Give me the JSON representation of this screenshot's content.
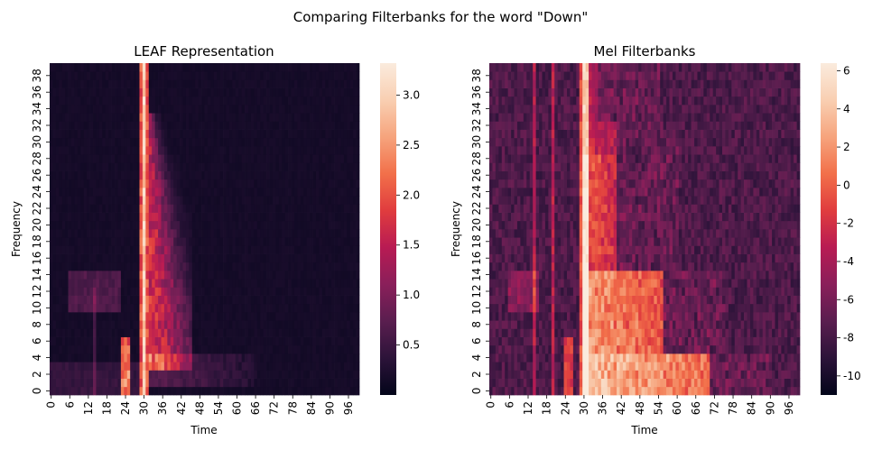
{
  "figure": {
    "suptitle": "Comparing Filterbanks for the word \"Down\""
  },
  "colormap": {
    "name": "rocket",
    "stops": [
      "#03051a",
      "#2c1339",
      "#5a1e4f",
      "#8a1f5a",
      "#b81b53",
      "#e03c3e",
      "#f2704a",
      "#f6a47d",
      "#f9cfb2",
      "#faebdd"
    ]
  },
  "chart_data": [
    {
      "type": "heatmap",
      "title": "LEAF Representation",
      "xlabel": "Time",
      "ylabel": "Frequency",
      "n_time": 100,
      "n_freq": 40,
      "x_ticks": [
        "0",
        "6",
        "12",
        "18",
        "24",
        "30",
        "36",
        "42",
        "48",
        "54",
        "60",
        "66",
        "72",
        "78",
        "84",
        "90",
        "96"
      ],
      "y_ticks": [
        "0",
        "2",
        "4",
        "6",
        "8",
        "10",
        "12",
        "14",
        "16",
        "18",
        "20",
        "22",
        "24",
        "26",
        "28",
        "30",
        "32",
        "34",
        "36",
        "38"
      ],
      "colorbar": {
        "min": 0.0,
        "max": 3.32,
        "ticks": [
          "0.5",
          "1.0",
          "1.5",
          "2.0",
          "2.5",
          "3.0"
        ]
      },
      "pattern": "Low background before t=29, sharp peak around t=30-31 across all bands, energy tail to t~45 in bands 4-32, vertical streaks near t=14 and t=23-25 in low bands, weak energy up to t~66 in bands 1-4"
    },
    {
      "type": "heatmap",
      "title": "Mel Filterbanks",
      "xlabel": "Time",
      "ylabel": "Frequency",
      "n_time": 100,
      "n_freq": 40,
      "x_ticks": [
        "0",
        "6",
        "12",
        "18",
        "24",
        "30",
        "36",
        "42",
        "48",
        "54",
        "60",
        "66",
        "72",
        "78",
        "84",
        "90",
        "96"
      ],
      "y_ticks": [
        "0",
        "2",
        "4",
        "6",
        "8",
        "10",
        "12",
        "14",
        "16",
        "18",
        "20",
        "22",
        "24",
        "26",
        "28",
        "30",
        "32",
        "34",
        "36",
        "38"
      ],
      "colorbar": {
        "min": -11.0,
        "max": 6.4,
        "ticks": [
          "6",
          "4",
          "2",
          "0",
          "-2",
          "-4",
          "-6",
          "-8",
          "-10"
        ]
      },
      "pattern": "Dark noise floor, bright burst from t=30 onward; bands 1-14 strongest out to t~55-70, bands 15-32 bright to t~40, streaks at t=14, 20, 24-26"
    }
  ]
}
